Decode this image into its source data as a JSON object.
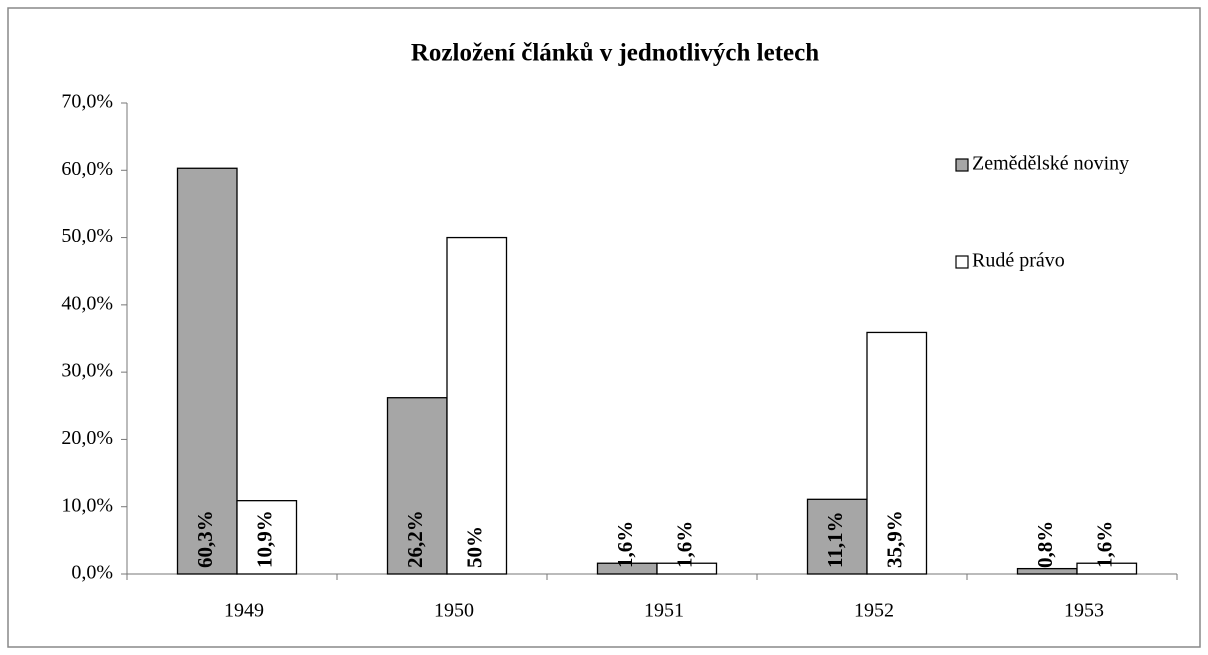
{
  "chart_data": {
    "type": "bar",
    "title": "Rozložení článků v jednotlivých letech",
    "categories": [
      "1949",
      "1950",
      "1951",
      "1952",
      "1953"
    ],
    "series": [
      {
        "name": "Zemědělské noviny",
        "color": "#a6a6a6",
        "values": [
          60.3,
          26.2,
          1.6,
          11.1,
          0.8
        ],
        "value_labels": [
          "60,3%",
          "26,2%",
          "1,6%",
          "11,1%",
          "0,8%"
        ]
      },
      {
        "name": "Rudé právo",
        "color": "#ffffff",
        "values": [
          10.9,
          50,
          1.6,
          35.9,
          1.6
        ],
        "value_labels": [
          "10,9%",
          "50%",
          "1,6%",
          "35,9%",
          "1,6%"
        ]
      }
    ],
    "ylim": [
      0,
      70
    ],
    "yticks": [
      {
        "value": 0,
        "label": "0,0%"
      },
      {
        "value": 10,
        "label": "10,0%"
      },
      {
        "value": 20,
        "label": "20,0%"
      },
      {
        "value": 30,
        "label": "30,0%"
      },
      {
        "value": 40,
        "label": "40,0%"
      },
      {
        "value": 50,
        "label": "50,0%"
      },
      {
        "value": 60,
        "label": "60,0%"
      },
      {
        "value": 70,
        "label": "70,0%"
      }
    ],
    "grid": false,
    "legend": "right"
  }
}
